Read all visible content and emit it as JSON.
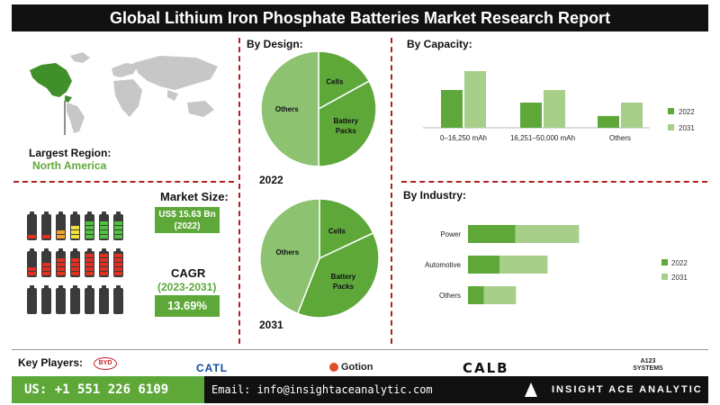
{
  "title": "Global Lithium Iron Phosphate Batteries Market Research Report",
  "region": {
    "label": "Largest Region:",
    "value": "North America"
  },
  "market": {
    "label": "Market Size:",
    "value": "US$ 15.63 Bn",
    "year": "(2022)"
  },
  "cagr": {
    "label": "CAGR",
    "period": "(2023-2031)",
    "value": "13.69%"
  },
  "colors": {
    "dark_green": "#5ea83a",
    "light_green": "#a8cf8a",
    "pie_light": "#8cc270",
    "accent_red": "#b02020",
    "black": "#111111"
  },
  "key_players": {
    "label": "Key Players:",
    "names": [
      "BYD",
      "CATL",
      "Gotion",
      "CALB",
      "A123 SYSTEMS"
    ]
  },
  "footer": {
    "phone": "US: +1 551 226 6109",
    "email": "Email: info@insightaceanalytic.com",
    "brand": "INSIGHT ACE ANALYTIC"
  },
  "chart_data": [
    {
      "type": "pie",
      "title": "By  Design:",
      "year": "2022",
      "labels": [
        "Cells",
        "Battery Packs",
        "Others"
      ],
      "values": [
        17,
        33,
        50
      ]
    },
    {
      "type": "pie",
      "year": "2031",
      "labels": [
        "Cells",
        "Battery Packs",
        "Others"
      ],
      "values": [
        18,
        38,
        44
      ]
    },
    {
      "type": "bar",
      "title": "By Capacity:",
      "categories": [
        "0–16,250 mAh",
        "16,251–50,000 mAh",
        "Others"
      ],
      "series": [
        {
          "name": "2022",
          "values": [
            48,
            32,
            15
          ]
        },
        {
          "name": "2031",
          "values": [
            72,
            48,
            32
          ]
        }
      ],
      "ylim": [
        0,
        80
      ],
      "legend": "right"
    },
    {
      "type": "bar",
      "orientation": "horizontal",
      "stacked": true,
      "title": "By Industry:",
      "categories": [
        "Power",
        "Automotive",
        "Others"
      ],
      "series": [
        {
          "name": "2022",
          "values": [
            60,
            40,
            20
          ]
        },
        {
          "name": "2031",
          "values": [
            81,
            61,
            41
          ]
        }
      ],
      "xlim": [
        0,
        160
      ],
      "legend": "right"
    }
  ]
}
